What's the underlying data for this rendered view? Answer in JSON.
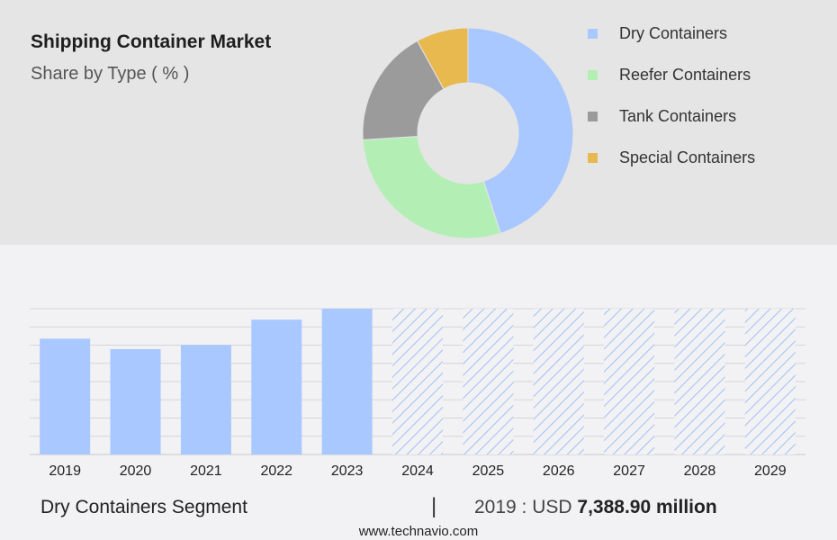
{
  "header": {
    "title": "Shipping Container Market",
    "subtitle": "Share by Type ( % )"
  },
  "colors": {
    "dry": "#a9c8ff",
    "reefer": "#b3efb5",
    "tank": "#9b9b9b",
    "special": "#e7b94f",
    "forecast_hatch": "#9fc0f5"
  },
  "chart_data": [
    {
      "type": "pie",
      "title": "Shipping Container Market",
      "subtitle": "Share by Type ( % )",
      "donut": true,
      "legend_position": "right",
      "slices": [
        {
          "label": "Dry Containers",
          "value": 45,
          "color": "#a9c8ff"
        },
        {
          "label": "Reefer Containers",
          "value": 29,
          "color": "#b3efb5"
        },
        {
          "label": "Tank Containers",
          "value": 18,
          "color": "#9b9b9b"
        },
        {
          "label": "Special Containers",
          "value": 8,
          "color": "#e7b94f"
        }
      ]
    },
    {
      "type": "bar",
      "series_label": "Dry Containers Segment",
      "categories": [
        "2019",
        "2020",
        "2021",
        "2022",
        "2023",
        "2024",
        "2025",
        "2026",
        "2027",
        "2028",
        "2029"
      ],
      "values": [
        7388.9,
        6720,
        6990,
        8600,
        9300,
        null,
        null,
        null,
        null,
        null,
        null
      ],
      "forecast_from": "2024",
      "unit": "USD million",
      "ylim": [
        0,
        9300
      ],
      "grid": true
    }
  ],
  "footer": {
    "segment": "Dry Containers Segment",
    "separator": "|",
    "value_prefix": "2019 : USD",
    "value": "7,388.90 million",
    "source": "www.technavio.com"
  }
}
